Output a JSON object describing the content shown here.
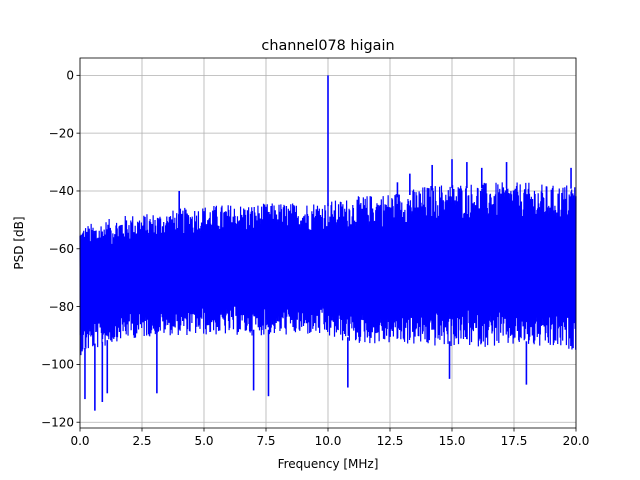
{
  "chart_data": {
    "type": "line",
    "title": "channel078 higain",
    "xlabel": "Frequency [MHz]",
    "ylabel": "PSD [dB]",
    "xlim": [
      0,
      20
    ],
    "ylim": [
      -122,
      6
    ],
    "xticks": [
      0,
      2.5,
      5,
      7.5,
      10,
      12.5,
      15,
      17.5,
      20
    ],
    "xtick_labels": [
      "0.0",
      "2.5",
      "5.0",
      "7.5",
      "10.0",
      "12.5",
      "15.0",
      "17.5",
      "20.0"
    ],
    "yticks": [
      0,
      -20,
      -40,
      -60,
      -80,
      -100,
      -120
    ],
    "ytick_labels": [
      "0",
      "−20",
      "−40",
      "−60",
      "−80",
      "−100",
      "−120"
    ],
    "grid": true,
    "series": [
      {
        "color": "#0000ff",
        "envelope_x": [
          0,
          0.5,
          1,
          1.5,
          2,
          2.5,
          3,
          3.5,
          4,
          4.5,
          5,
          6,
          7,
          8,
          9,
          9.5,
          10.5,
          11,
          12,
          13,
          14,
          15,
          16,
          17,
          18,
          19,
          20
        ],
        "envelope_upper": [
          -52,
          -51,
          -50,
          -49,
          -48,
          -48,
          -47.5,
          -47,
          -46,
          -45.5,
          -45,
          -44.5,
          -44.5,
          -44,
          -44,
          -43.5,
          -43,
          -42,
          -41,
          -40,
          -38,
          -37,
          -37,
          -37,
          -37,
          -38,
          -37
        ],
        "envelope_lower": [
          -97,
          -95,
          -94,
          -92,
          -91,
          -91,
          -90,
          -90,
          -90,
          -90,
          -90,
          -90,
          -90,
          -90,
          -90,
          -90,
          -92,
          -93,
          -93,
          -93,
          -94,
          -94,
          -94,
          -94,
          -94,
          -95,
          -95
        ],
        "spikes": [
          {
            "x": 10.0,
            "y": 0
          },
          {
            "x": 4.0,
            "y": -40
          },
          {
            "x": 15.0,
            "y": -29
          },
          {
            "x": 14.2,
            "y": -31
          },
          {
            "x": 15.6,
            "y": -30
          },
          {
            "x": 16.2,
            "y": -32
          },
          {
            "x": 17.2,
            "y": -30
          },
          {
            "x": 19.8,
            "y": -32
          },
          {
            "x": 12.8,
            "y": -37
          },
          {
            "x": 13.3,
            "y": -34
          }
        ],
        "dips": [
          {
            "x": 0.2,
            "y": -112
          },
          {
            "x": 0.6,
            "y": -116
          },
          {
            "x": 0.9,
            "y": -113
          },
          {
            "x": 1.1,
            "y": -110
          },
          {
            "x": 3.1,
            "y": -110
          },
          {
            "x": 7.0,
            "y": -109
          },
          {
            "x": 7.6,
            "y": -111
          },
          {
            "x": 10.8,
            "y": -108
          },
          {
            "x": 14.9,
            "y": -105
          },
          {
            "x": 18.0,
            "y": -107
          }
        ]
      }
    ]
  }
}
